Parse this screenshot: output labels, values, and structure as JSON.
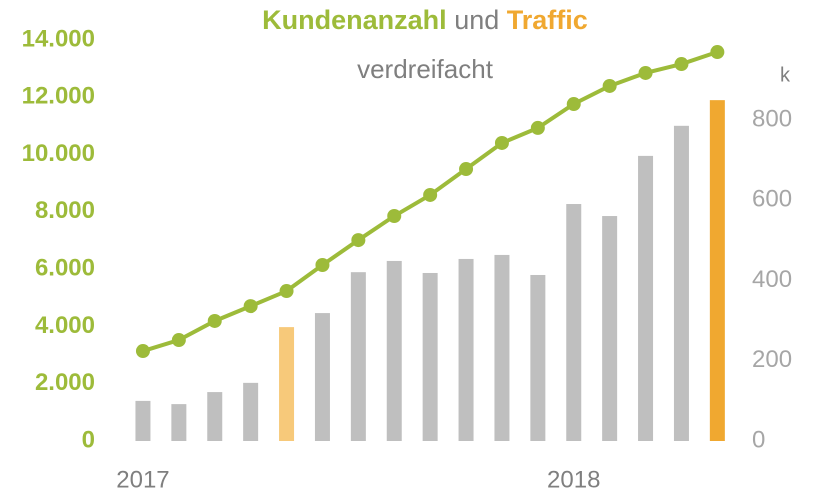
{
  "chart_data": {
    "type": "bar_line",
    "title_connector": "und",
    "subtitle": "verdreifacht",
    "categories": [
      "2017",
      null,
      null,
      null,
      null,
      null,
      null,
      null,
      null,
      null,
      null,
      null,
      "2018",
      null,
      null,
      null,
      null
    ],
    "series": [
      {
        "name": "Kundenanzahl",
        "type": "line",
        "color": "#9dbb3a",
        "axis": "y",
        "values": [
          3140,
          3525,
          4190,
          4710,
          5235,
          6145,
          7015,
          7855,
          8590,
          9495,
          10405,
          10930,
          11765,
          12395,
          12850,
          13160,
          13580
        ]
      },
      {
        "name": "Traffic",
        "type": "bar",
        "color": "#f0a830",
        "axis": "y2",
        "colors": [
          "#bfbfbf",
          "#bfbfbf",
          "#bfbfbf",
          "#bfbfbf",
          "#f7c97a",
          "#bfbfbf",
          "#bfbfbf",
          "#bfbfbf",
          "#bfbfbf",
          "#bfbfbf",
          "#bfbfbf",
          "#bfbfbf",
          "#bfbfbf",
          "#bfbfbf",
          "#bfbfbf",
          "#bfbfbf",
          "#f0a830"
        ],
        "values": [
          100,
          92,
          122,
          145,
          284,
          319,
          421,
          449,
          419,
          454,
          464,
          414,
          591,
          561,
          711,
          786,
          850
        ]
      }
    ],
    "ylim": [
      0,
      14000
    ],
    "yticks": [
      0,
      {
        "value": 2000,
        "label": "2.000"
      },
      {
        "value": 4000,
        "label": "4.000"
      },
      {
        "value": 6000,
        "label": "6.000"
      },
      {
        "value": 8000,
        "label": "8.000"
      },
      {
        "value": 10000,
        "label": "10.000"
      },
      {
        "value": 12000,
        "label": "12.000"
      },
      {
        "value": 14000,
        "label": "14.000"
      }
    ],
    "y2lim": [
      0,
      1000
    ],
    "y2ticks": [
      0,
      200,
      400,
      600,
      800
    ],
    "y2_label": "k",
    "grid": false
  }
}
